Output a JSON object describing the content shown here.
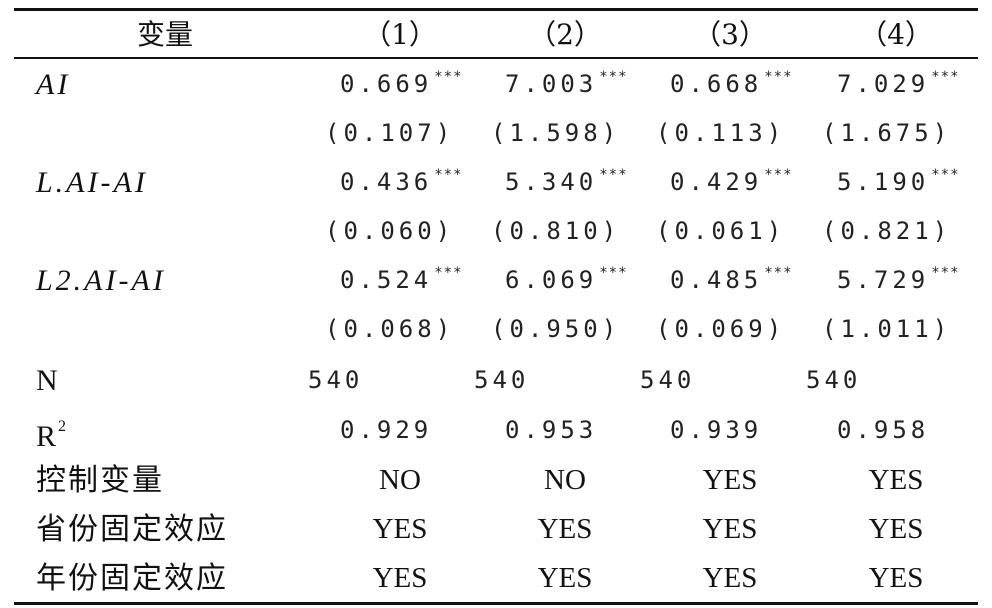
{
  "table": {
    "header": {
      "variable_label": "变量",
      "columns": [
        "（1）",
        "（2）",
        "（3）",
        "（4）"
      ]
    },
    "coef_rows": [
      {
        "name": "AI",
        "values": [
          "0.669",
          "7.003",
          "0.668",
          "7.029"
        ],
        "stars": [
          "***",
          "***",
          "***",
          "***"
        ],
        "se": [
          "(0.107)",
          "(1.598)",
          "(0.113)",
          "(1.675)"
        ]
      },
      {
        "name": "L.AI-AI",
        "values": [
          "0.436",
          "5.340",
          "0.429",
          "5.190"
        ],
        "stars": [
          "***",
          "***",
          "***",
          "***"
        ],
        "se": [
          "(0.060)",
          "(0.810)",
          "(0.061)",
          "(0.821)"
        ]
      },
      {
        "name": "L2.AI-AI",
        "values": [
          "0.524",
          "6.069",
          "0.485",
          "5.729"
        ],
        "stars": [
          "***",
          "***",
          "***",
          "***"
        ],
        "se": [
          "(0.068)",
          "(0.950)",
          "(0.069)",
          "(1.011)"
        ]
      }
    ],
    "stats": {
      "n_label": "N",
      "n_values": [
        "540",
        "540",
        "540",
        "540"
      ],
      "r2_base": "R",
      "r2_sup": "2",
      "r2_values": [
        "0.929",
        "0.953",
        "0.939",
        "0.958"
      ]
    },
    "controls": [
      {
        "label": "控制变量",
        "values": [
          "NO",
          "NO",
          "YES",
          "YES"
        ]
      },
      {
        "label": "省份固定效应",
        "values": [
          "YES",
          "YES",
          "YES",
          "YES"
        ]
      },
      {
        "label": "年份固定效应",
        "values": [
          "YES",
          "YES",
          "YES",
          "YES"
        ]
      }
    ]
  }
}
